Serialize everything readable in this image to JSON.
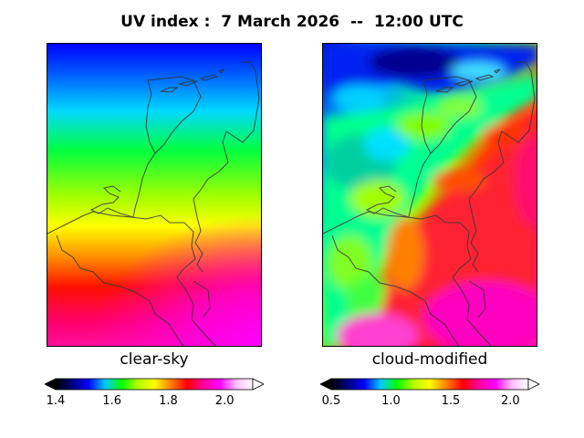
{
  "title": "UV index :  7 March 2026  --  12:00 UTC",
  "panels": {
    "left": {
      "label": "clear-sky",
      "colorbar": {
        "min": 1.4,
        "max": 2.1,
        "extend": "both",
        "ticks": [
          "1.4",
          "1.6",
          "1.8",
          "2.0"
        ],
        "tick_values": [
          1.4,
          1.6,
          1.8,
          2.0
        ]
      }
    },
    "right": {
      "label": "cloud-modified",
      "colorbar": {
        "min": 0.5,
        "max": 2.15,
        "extend": "both",
        "ticks": [
          "0.5",
          "1.0",
          "1.5",
          "2.0"
        ],
        "tick_values": [
          0.5,
          1.0,
          1.5,
          2.0
        ]
      }
    }
  },
  "colormap": [
    "#000000",
    "#00007f",
    "#0000ff",
    "#00c8ff",
    "#00ff00",
    "#b4ff00",
    "#ffff00",
    "#ff8000",
    "#ff0000",
    "#ff00a0",
    "#ff00ff",
    "#ffbfff",
    "#ffffff"
  ],
  "map_outline_color": "#333333"
}
